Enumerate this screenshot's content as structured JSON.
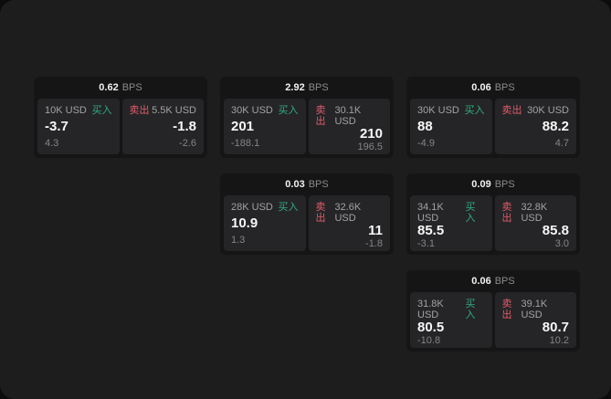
{
  "labels": {
    "bps": "BPS",
    "buy": "买入",
    "sell": "卖出"
  },
  "colors": {
    "page_bg": "#0c0c0c",
    "panel_bg": "#1d1d1e",
    "card_bg": "#151516",
    "tile_bg": "#252527",
    "buy_green": "#2fad7e",
    "sell_red": "#e25c6a",
    "text_primary": "#f7f7f7",
    "text_muted": "#8b8b8b"
  },
  "cards": [
    {
      "bps": "0.62",
      "buy": {
        "amount": "10K USD",
        "value": "-3.7",
        "sub": "4.3"
      },
      "sell": {
        "amount": "5.5K USD",
        "value": "-1.8",
        "sub": "-2.6"
      }
    },
    {
      "bps": "2.92",
      "buy": {
        "amount": "30K USD",
        "value": "201",
        "sub": "-188.1"
      },
      "sell": {
        "amount": "30.1K USD",
        "value": "210",
        "sub": "196.5"
      }
    },
    {
      "bps": "0.06",
      "buy": {
        "amount": "30K USD",
        "value": "88",
        "sub": "-4.9"
      },
      "sell": {
        "amount": "30K USD",
        "value": "88.2",
        "sub": "4.7"
      }
    },
    {
      "bps": "0.03",
      "buy": {
        "amount": "28K USD",
        "value": "10.9",
        "sub": "1.3"
      },
      "sell": {
        "amount": "32.6K USD",
        "value": "11",
        "sub": "-1.8"
      }
    },
    {
      "bps": "0.09",
      "buy": {
        "amount": "34.1K USD",
        "value": "85.5",
        "sub": "-3.1"
      },
      "sell": {
        "amount": "32.8K USD",
        "value": "85.8",
        "sub": "3.0"
      }
    },
    {
      "bps": "0.06",
      "buy": {
        "amount": "31.8K USD",
        "value": "80.5",
        "sub": "-10.8"
      },
      "sell": {
        "amount": "39.1K USD",
        "value": "80.7",
        "sub": "10.2"
      }
    }
  ]
}
